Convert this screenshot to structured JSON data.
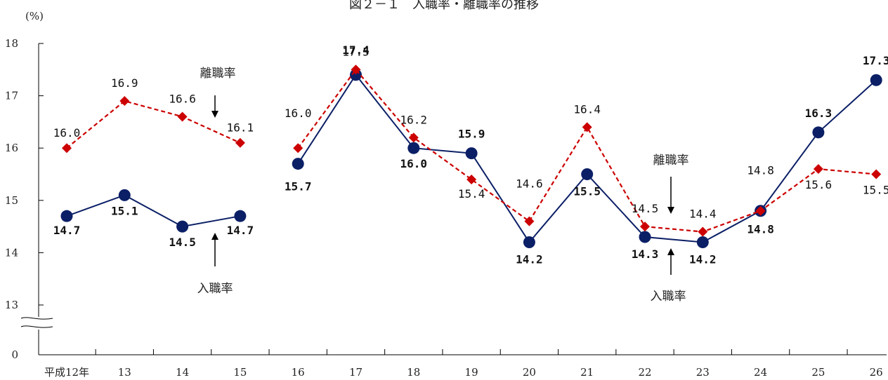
{
  "chart_data": {
    "type": "line",
    "title": "図２－１　入職率・離職率の推移",
    "ylabel": "(%)",
    "xlabel": "",
    "categories": [
      "平成12年",
      "13",
      "14",
      "15",
      "16",
      "17",
      "18",
      "19",
      "20",
      "21",
      "22",
      "23",
      "24",
      "25",
      "26"
    ],
    "yticks": [
      "18",
      "17",
      "16",
      "15",
      "14",
      "13",
      "0"
    ],
    "ylim": [
      13,
      18
    ],
    "axis_break": true,
    "grid": false,
    "series": [
      {
        "name": "入職率",
        "color": "#0b1f66",
        "style": "solid",
        "marker": "circle",
        "values": [
          14.7,
          15.1,
          14.5,
          14.7,
          15.7,
          17.4,
          16.0,
          15.9,
          14.2,
          15.5,
          14.3,
          14.2,
          14.8,
          16.3,
          17.3
        ],
        "labels": [
          "14.7",
          "15.1",
          "14.5",
          "14.7",
          "15.7",
          "17.4",
          "16.0",
          "15.9",
          "14.2",
          "15.5",
          "14.3",
          "14.2",
          "14.8",
          "16.3",
          "17.3"
        ]
      },
      {
        "name": "離職率",
        "color": "#cc0000",
        "style": "dashed",
        "marker": "diamond",
        "values": [
          16.0,
          16.9,
          16.6,
          16.1,
          16.0,
          17.5,
          16.2,
          15.4,
          14.6,
          16.4,
          14.5,
          14.4,
          14.8,
          15.6,
          15.5
        ],
        "labels": [
          "16.0",
          "16.9",
          "16.6",
          "16.1",
          "16.0",
          "17.5",
          "16.2",
          "15.4",
          "14.6",
          "16.4",
          "14.5",
          "14.4",
          "14.8",
          "15.6",
          "15.5"
        ]
      }
    ],
    "annotations": {
      "left_sep_label": "離職率",
      "left_ent_label": "入職率",
      "right_sep_label": "離職率",
      "right_ent_label": "入職率"
    }
  }
}
